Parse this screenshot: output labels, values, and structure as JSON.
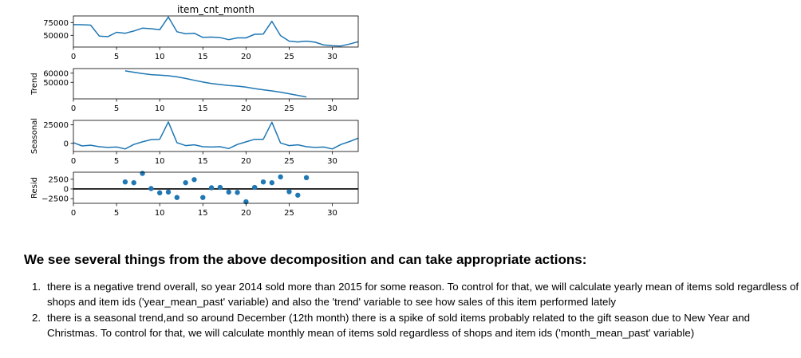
{
  "chart_data": [
    {
      "type": "line",
      "title": "item_cnt_month",
      "ylabel": "",
      "x": [
        0,
        1,
        2,
        3,
        4,
        5,
        6,
        7,
        8,
        9,
        10,
        11,
        12,
        13,
        14,
        15,
        16,
        17,
        18,
        19,
        20,
        21,
        22,
        23,
        24,
        25,
        26,
        27,
        28,
        29,
        30,
        31,
        32,
        33
      ],
      "values": [
        71000,
        70800,
        70000,
        48500,
        47500,
        56000,
        54000,
        58500,
        64000,
        63000,
        61000,
        86000,
        57000,
        53000,
        54000,
        46000,
        46500,
        45500,
        41500,
        45000,
        45000,
        52000,
        52500,
        77500,
        49500,
        38500,
        37000,
        38500,
        36500,
        31000,
        29500,
        29000,
        33000,
        37500
      ],
      "xlim": [
        0,
        33
      ],
      "ylim": [
        27000,
        88000
      ],
      "xticks": [
        0,
        5,
        10,
        15,
        20,
        25,
        30
      ],
      "yticks": [
        50000,
        75000
      ],
      "ytick_labels": [
        "50000",
        "75000"
      ],
      "grid": false
    },
    {
      "type": "line",
      "title": "",
      "ylabel": "Trend",
      "x": [
        6,
        7,
        8,
        9,
        10,
        11,
        12,
        13,
        14,
        15,
        16,
        17,
        18,
        19,
        20,
        21,
        22,
        23,
        24,
        25,
        26,
        27
      ],
      "values": [
        62500,
        61000,
        59500,
        58400,
        57800,
        57200,
        56000,
        54200,
        52200,
        50300,
        48700,
        47600,
        46600,
        45900,
        44800,
        43200,
        41900,
        40700,
        39300,
        37600,
        35800,
        34000
      ],
      "xlim": [
        0,
        33
      ],
      "ylim": [
        32000,
        65000
      ],
      "xticks": [
        0,
        5,
        10,
        15,
        20,
        25,
        30
      ],
      "yticks": [
        50000,
        60000
      ],
      "ytick_labels": [
        "50000",
        "60000"
      ],
      "grid": false
    },
    {
      "type": "line",
      "title": "",
      "ylabel": "Seasonal",
      "x": [
        0,
        1,
        2,
        3,
        4,
        5,
        6,
        7,
        8,
        9,
        10,
        11,
        12,
        13,
        14,
        15,
        16,
        17,
        18,
        19,
        20,
        21,
        22,
        23,
        24,
        25,
        26,
        27,
        28,
        29,
        30,
        31,
        32,
        33
      ],
      "values": [
        1000,
        -3500,
        -2500,
        -4500,
        -5500,
        -5000,
        -7500,
        -1500,
        2000,
        5000,
        5500,
        29000,
        1000,
        -3000,
        -2000,
        -4500,
        -5000,
        -4500,
        -7000,
        -1500,
        2000,
        5500,
        5500,
        28500,
        500,
        -3000,
        -2000,
        -4500,
        -5500,
        -5000,
        -7500,
        -1500,
        2500,
        7000
      ],
      "xlim": [
        0,
        33
      ],
      "ylim": [
        -11000,
        31000
      ],
      "xticks": [
        0,
        5,
        10,
        15,
        20,
        25,
        30
      ],
      "yticks": [
        0,
        25000
      ],
      "ytick_labels": [
        "0",
        "25000"
      ],
      "grid": false
    },
    {
      "type": "scatter",
      "title": "",
      "ylabel": "Resid",
      "x": [
        6,
        7,
        8,
        9,
        10,
        11,
        12,
        13,
        14,
        15,
        16,
        17,
        18,
        19,
        20,
        21,
        22,
        23,
        24,
        25,
        26,
        27
      ],
      "values": [
        1800,
        1600,
        4000,
        100,
        -1000,
        -800,
        -2200,
        1600,
        2400,
        -2200,
        300,
        400,
        -800,
        -900,
        -3300,
        400,
        1800,
        1600,
        3100,
        -700,
        -1600,
        2900
      ],
      "xlim": [
        0,
        33
      ],
      "ylim": [
        -3700,
        4300
      ],
      "xticks": [
        0,
        5,
        10,
        15,
        20,
        25,
        30
      ],
      "yticks": [
        -2500,
        0,
        2500
      ],
      "ytick_labels": [
        "−2500",
        "0",
        "2500"
      ],
      "grid": false
    }
  ],
  "text": {
    "heading": "We see several things from the above decomposition and can take appropriate actions:",
    "items": [
      {
        "num": "1.",
        "text": "there is a negative trend overall, so year 2014 sold more than 2015 for some reason. To control for that, we will calculate yearly mean of items sold regardless of shops and item ids ('year_mean_past' variable) and also the 'trend' variable to see how sales of this item performed lately"
      },
      {
        "num": "2.",
        "text": "there is a seasonal trend,and so around December (12th month) there is a spike of sold items probably related to the gift season due to New Year and Christmas. To control for that, we will calculate monthly mean of items sold regardless of shops and item ids ('month_mean_past' variable)"
      }
    ]
  }
}
